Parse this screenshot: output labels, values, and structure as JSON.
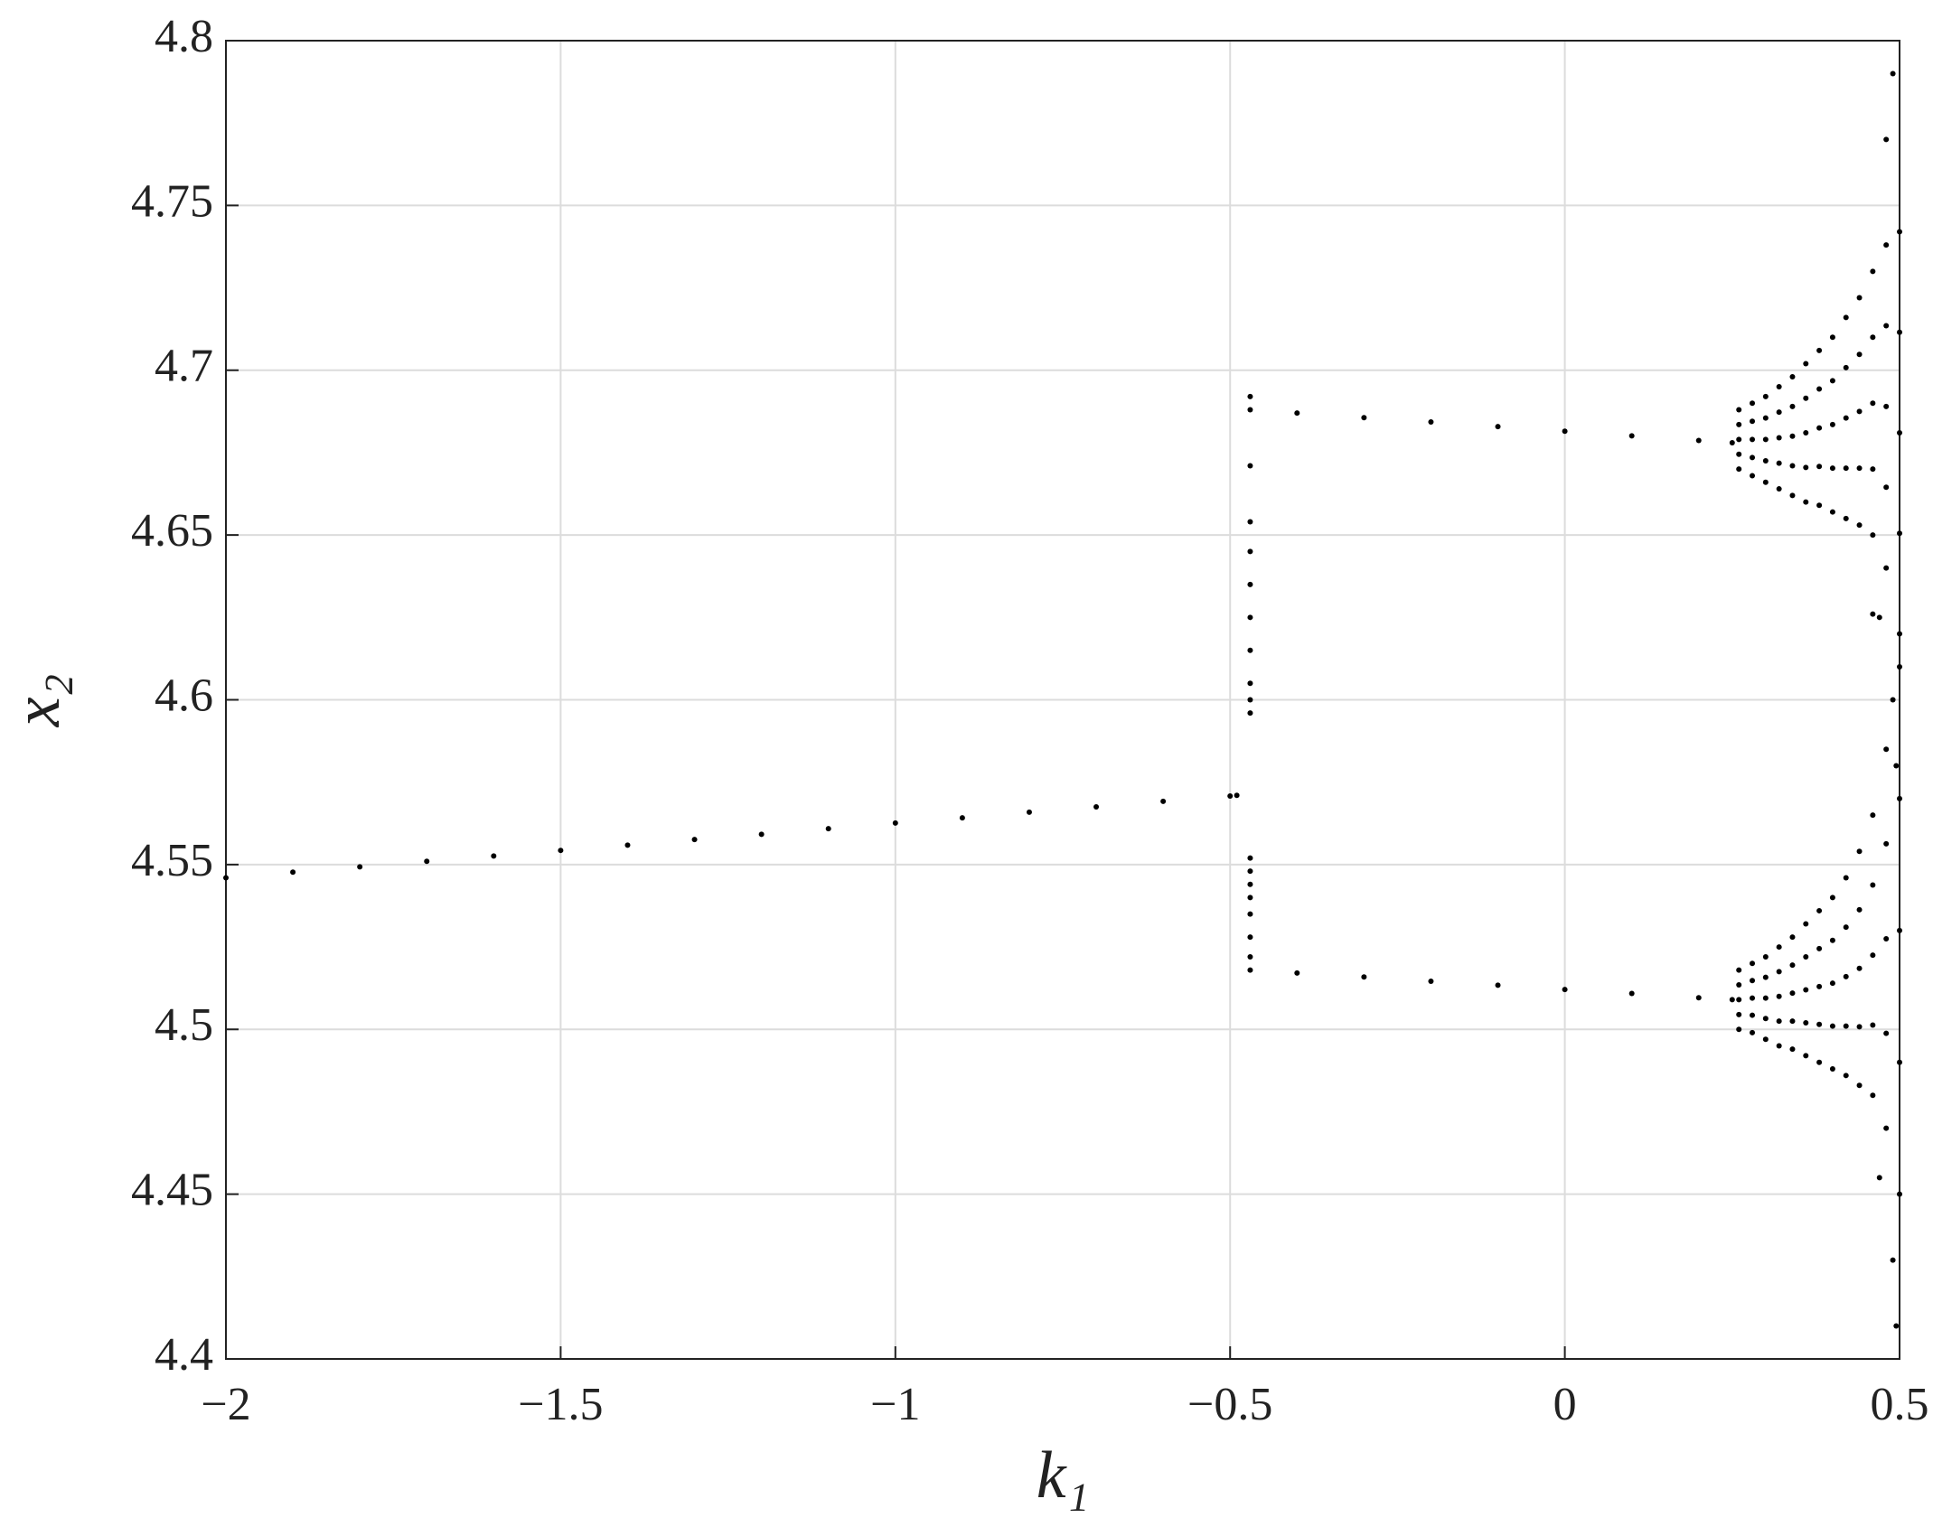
{
  "chart_data": {
    "type": "scatter",
    "xlabel": "k₁",
    "ylabel": "x₂",
    "xlim": [
      -2,
      0.5
    ],
    "xticks": [
      {
        "value": -2,
        "label": "−2"
      },
      {
        "value": -1.5,
        "label": "−1.5"
      },
      {
        "value": -1,
        "label": "−1"
      },
      {
        "value": -0.5,
        "label": "−0.5"
      },
      0,
      0.5
    ],
    "ylim": [
      4.4,
      4.8
    ],
    "yticks": [
      4.4,
      4.45,
      4.5,
      4.55,
      4.6,
      4.65,
      4.7,
      4.75,
      4.8
    ],
    "grid": true,
    "color": "#000000",
    "x": [
      -2,
      -1.9,
      -1.8,
      -1.7,
      -1.6,
      -1.5,
      -1.4,
      -1.3,
      -1.2,
      -1.1,
      -1.0,
      -0.9,
      -0.8,
      -0.7,
      -0.6,
      -0.5,
      -0.49,
      -0.47,
      -0.47,
      -0.47,
      -0.47,
      -0.47,
      -0.47,
      -0.47,
      -0.47,
      -0.47,
      -0.47,
      -0.47,
      -0.47,
      -0.47,
      -0.47,
      -0.47,
      -0.47,
      -0.47,
      -0.47,
      -0.47,
      -0.4,
      -0.3,
      -0.2,
      -0.1,
      0,
      0.1,
      0.2,
      0.25,
      -0.4,
      -0.3,
      -0.2,
      -0.1,
      0,
      0.1,
      0.2,
      0.25,
      0.26,
      0.26,
      0.26,
      0.26,
      0.26,
      0.26,
      0.26,
      0.26,
      0.26,
      0.26,
      0.28,
      0.28,
      0.28,
      0.28,
      0.28,
      0.28,
      0.28,
      0.28,
      0.28,
      0.28,
      0.3,
      0.3,
      0.3,
      0.3,
      0.3,
      0.3,
      0.3,
      0.3,
      0.3,
      0.3,
      0.32,
      0.32,
      0.32,
      0.32,
      0.32,
      0.32,
      0.32,
      0.32,
      0.32,
      0.32,
      0.34,
      0.34,
      0.34,
      0.34,
      0.34,
      0.34,
      0.34,
      0.34,
      0.34,
      0.34,
      0.36,
      0.36,
      0.36,
      0.36,
      0.36,
      0.36,
      0.36,
      0.36,
      0.36,
      0.36,
      0.38,
      0.38,
      0.38,
      0.38,
      0.38,
      0.38,
      0.38,
      0.38,
      0.38,
      0.38,
      0.4,
      0.4,
      0.4,
      0.4,
      0.4,
      0.4,
      0.4,
      0.4,
      0.4,
      0.4,
      0.42,
      0.42,
      0.42,
      0.42,
      0.42,
      0.42,
      0.42,
      0.42,
      0.42,
      0.42,
      0.44,
      0.44,
      0.44,
      0.44,
      0.44,
      0.44,
      0.44,
      0.44,
      0.44,
      0.44,
      0.46,
      0.46,
      0.46,
      0.46,
      0.46,
      0.46,
      0.46,
      0.46,
      0.46,
      0.46,
      0.48,
      0.48,
      0.48,
      0.48,
      0.48,
      0.48,
      0.48,
      0.48,
      0.48,
      0.48,
      0.5,
      0.5,
      0.5,
      0.5,
      0.5,
      0.5,
      0.5,
      0.5,
      0.5,
      0.5,
      0.47,
      0.49,
      0.495,
      0.49,
      0.48,
      0.49,
      0.495,
      0.47,
      0.46
    ],
    "values": [
      4.546,
      4.5477,
      4.5493,
      4.551,
      4.5526,
      4.5543,
      4.5559,
      4.5576,
      4.5592,
      4.5609,
      4.5626,
      4.5642,
      4.5659,
      4.5675,
      4.5692,
      4.5708,
      4.571,
      4.692,
      4.688,
      4.671,
      4.654,
      4.645,
      4.635,
      4.625,
      4.615,
      4.605,
      4.6,
      4.596,
      4.552,
      4.548,
      4.544,
      4.54,
      4.535,
      4.528,
      4.522,
      4.518,
      4.687,
      4.6856,
      4.6843,
      4.6829,
      4.6815,
      4.6801,
      4.6787,
      4.678,
      4.5171,
      4.5159,
      4.5146,
      4.5134,
      4.5121,
      4.5109,
      4.5096,
      4.509,
      4.67,
      4.6745,
      4.679,
      4.6835,
      4.688,
      4.5,
      4.5045,
      4.509,
      4.5135,
      4.518,
      4.668,
      4.6735,
      4.679,
      4.6845,
      4.69,
      4.499,
      4.5043,
      4.5095,
      4.5148,
      4.52,
      4.666,
      4.6725,
      4.679,
      4.6855,
      4.692,
      4.497,
      4.5033,
      4.5095,
      4.5158,
      4.522,
      4.664,
      4.6718,
      4.6795,
      4.6873,
      4.695,
      4.495,
      4.5025,
      4.51,
      4.5175,
      4.525,
      4.662,
      4.671,
      4.68,
      4.689,
      4.698,
      4.494,
      4.5025,
      4.511,
      4.5195,
      4.528,
      4.66,
      4.6705,
      4.681,
      4.6915,
      4.702,
      4.492,
      4.502,
      4.512,
      4.522,
      4.532,
      4.659,
      4.6708,
      4.6825,
      4.6943,
      4.706,
      4.49,
      4.5015,
      4.513,
      4.5245,
      4.536,
      4.657,
      4.6703,
      4.6835,
      4.6968,
      4.71,
      4.488,
      4.501,
      4.514,
      4.527,
      4.54,
      4.655,
      4.6703,
      4.6855,
      4.7008,
      4.716,
      4.486,
      4.501,
      4.516,
      4.531,
      4.546,
      4.653,
      4.6703,
      4.6875,
      4.7048,
      4.722,
      4.483,
      4.5008,
      4.5185,
      4.5363,
      4.554,
      4.65,
      4.67,
      4.69,
      4.71,
      4.73,
      4.48,
      4.5013,
      4.5225,
      4.5438,
      4.565,
      4.64,
      4.6645,
      4.689,
      4.7135,
      4.738,
      4.47,
      4.4988,
      4.5275,
      4.5563,
      4.585,
      4.62,
      4.6505,
      4.681,
      4.7115,
      4.742,
      4.45,
      4.49,
      4.53,
      4.57,
      4.61,
      4.625,
      4.6,
      4.58,
      4.79,
      4.77,
      4.43,
      4.41,
      4.455,
      4.626
    ]
  }
}
